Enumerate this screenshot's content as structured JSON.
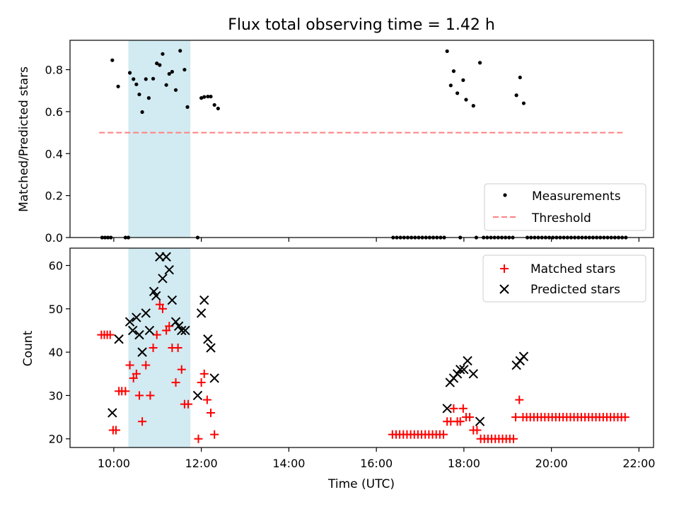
{
  "chart_data": {
    "title": "Flux total observing time = 1.42 h",
    "type": "scatter",
    "shaded_region_time": [
      "10:20",
      "11:45"
    ],
    "shaded_region_color": "#add8e6",
    "x_range_time": [
      "09:00",
      "22:20"
    ],
    "xlabel": "Time (UTC)",
    "xticks": [
      "10:00",
      "12:00",
      "14:00",
      "16:00",
      "18:00",
      "20:00",
      "22:00"
    ],
    "panels": [
      {
        "id": "ratio",
        "ylabel": "Matched/Predicted stars",
        "ylim": [
          0,
          0.94
        ],
        "yticks": [
          "0.0",
          "0.2",
          "0.4",
          "0.6",
          "0.8"
        ],
        "legend_position": "lower-right",
        "threshold": {
          "name": "Threshold",
          "value": 0.5,
          "x_range_time": [
            "09:40",
            "21:40"
          ],
          "color": "#ff8080",
          "style": "dashed"
        },
        "series": [
          {
            "name": "Measurements",
            "marker": "dot",
            "color": "#000000",
            "points": [
              [
                "09:44",
                0
              ],
              [
                "09:48",
                0
              ],
              [
                "09:52",
                0
              ],
              [
                "09:56",
                0
              ],
              [
                "10:16",
                0
              ],
              [
                "10:20",
                0
              ],
              [
                "11:55",
                0
              ],
              [
                "09:58",
                0.845
              ],
              [
                "10:06",
                0.72
              ],
              [
                "10:22",
                0.785
              ],
              [
                "10:27",
                0.755
              ],
              [
                "10:31",
                0.73
              ],
              [
                "10:35",
                0.682
              ],
              [
                "10:39",
                0.598
              ],
              [
                "10:44",
                0.755
              ],
              [
                "10:48",
                0.665
              ],
              [
                "10:54",
                0.757
              ],
              [
                "10:59",
                0.83
              ],
              [
                "11:03",
                0.822
              ],
              [
                "11:07",
                0.875
              ],
              [
                "11:12",
                0.727
              ],
              [
                "11:16",
                0.78
              ],
              [
                "11:20",
                0.79
              ],
              [
                "11:25",
                0.703
              ],
              [
                "11:31",
                0.89
              ],
              [
                "11:37",
                0.8
              ],
              [
                "11:41",
                0.622
              ],
              [
                "12:00",
                0.665
              ],
              [
                "12:04",
                0.67
              ],
              [
                "12:09",
                0.672
              ],
              [
                "12:13",
                0.672
              ],
              [
                "12:18",
                0.632
              ],
              [
                "12:23",
                0.615
              ],
              [
                "16:23",
                0
              ],
              [
                "16:28",
                0
              ],
              [
                "16:33",
                0
              ],
              [
                "16:38",
                0
              ],
              [
                "16:43",
                0
              ],
              [
                "16:48",
                0
              ],
              [
                "16:53",
                0
              ],
              [
                "16:58",
                0
              ],
              [
                "17:03",
                0
              ],
              [
                "17:08",
                0
              ],
              [
                "17:13",
                0
              ],
              [
                "17:18",
                0
              ],
              [
                "17:23",
                0
              ],
              [
                "17:28",
                0
              ],
              [
                "17:33",
                0
              ],
              [
                "17:37",
                0.888
              ],
              [
                "17:42",
                0.725
              ],
              [
                "17:46",
                0.793
              ],
              [
                "17:51",
                0.688
              ],
              [
                "17:55",
                0
              ],
              [
                "17:59",
                0.75
              ],
              [
                "18:03",
                0.657
              ],
              [
                "18:13",
                0.628
              ],
              [
                "18:22",
                0.833
              ],
              [
                "18:17",
                0
              ],
              [
                "18:27",
                0
              ],
              [
                "18:32",
                0
              ],
              [
                "18:37",
                0
              ],
              [
                "18:42",
                0
              ],
              [
                "18:47",
                0
              ],
              [
                "18:52",
                0
              ],
              [
                "18:57",
                0
              ],
              [
                "19:02",
                0
              ],
              [
                "19:07",
                0
              ],
              [
                "19:12",
                0.678
              ],
              [
                "19:17",
                0.763
              ],
              [
                "19:22",
                0.64
              ],
              [
                "19:27",
                0
              ],
              [
                "19:32",
                0
              ],
              [
                "19:37",
                0
              ],
              [
                "19:42",
                0
              ],
              [
                "19:47",
                0
              ],
              [
                "19:52",
                0
              ],
              [
                "19:57",
                0
              ],
              [
                "20:02",
                0
              ],
              [
                "20:07",
                0
              ],
              [
                "20:12",
                0
              ],
              [
                "20:17",
                0
              ],
              [
                "20:22",
                0
              ],
              [
                "20:27",
                0
              ],
              [
                "20:32",
                0
              ],
              [
                "20:37",
                0
              ],
              [
                "20:42",
                0
              ],
              [
                "20:47",
                0
              ],
              [
                "20:52",
                0
              ],
              [
                "20:57",
                0
              ],
              [
                "21:02",
                0
              ],
              [
                "21:07",
                0
              ],
              [
                "21:12",
                0
              ],
              [
                "21:17",
                0
              ],
              [
                "21:22",
                0
              ],
              [
                "21:27",
                0
              ],
              [
                "21:32",
                0
              ],
              [
                "21:37",
                0
              ],
              [
                "21:42",
                0
              ]
            ]
          }
        ]
      },
      {
        "id": "count",
        "ylabel": "Count",
        "ylim": [
          18,
          64
        ],
        "yticks": [
          "20",
          "30",
          "40",
          "50",
          "60"
        ],
        "legend_position": "upper-right",
        "series": [
          {
            "name": "Matched stars",
            "marker": "plus",
            "color": "#ff0000",
            "points": [
              [
                "09:43",
                44
              ],
              [
                "09:47",
                44
              ],
              [
                "09:51",
                44
              ],
              [
                "09:55",
                44
              ],
              [
                "09:59",
                22
              ],
              [
                "10:03",
                22
              ],
              [
                "10:07",
                31
              ],
              [
                "10:11",
                31
              ],
              [
                "10:16",
                31
              ],
              [
                "10:22",
                37
              ],
              [
                "10:27",
                34
              ],
              [
                "10:31",
                35
              ],
              [
                "10:35",
                30
              ],
              [
                "10:39",
                24
              ],
              [
                "10:44",
                37
              ],
              [
                "10:50",
                30
              ],
              [
                "10:54",
                41
              ],
              [
                "10:59",
                44
              ],
              [
                "11:03",
                51
              ],
              [
                "11:07",
                50
              ],
              [
                "11:12",
                45
              ],
              [
                "11:16",
                46
              ],
              [
                "11:20",
                41
              ],
              [
                "11:25",
                33
              ],
              [
                "11:28",
                41
              ],
              [
                "11:33",
                36
              ],
              [
                "11:37",
                28
              ],
              [
                "11:42",
                28
              ],
              [
                "11:56",
                20
              ],
              [
                "12:00",
                33
              ],
              [
                "12:04",
                35
              ],
              [
                "12:08",
                29
              ],
              [
                "12:13",
                26
              ],
              [
                "12:18",
                21
              ],
              [
                "16:22",
                21
              ],
              [
                "16:27",
                21
              ],
              [
                "16:32",
                21
              ],
              [
                "16:37",
                21
              ],
              [
                "16:42",
                21
              ],
              [
                "16:47",
                21
              ],
              [
                "16:52",
                21
              ],
              [
                "16:57",
                21
              ],
              [
                "17:02",
                21
              ],
              [
                "17:07",
                21
              ],
              [
                "17:12",
                21
              ],
              [
                "17:17",
                21
              ],
              [
                "17:22",
                21
              ],
              [
                "17:27",
                21
              ],
              [
                "17:32",
                21
              ],
              [
                "17:37",
                24
              ],
              [
                "17:42",
                24
              ],
              [
                "17:46",
                27
              ],
              [
                "17:51",
                24
              ],
              [
                "17:55",
                24
              ],
              [
                "17:59",
                27
              ],
              [
                "18:03",
                25
              ],
              [
                "18:08",
                25
              ],
              [
                "18:13",
                22
              ],
              [
                "18:18",
                22
              ],
              [
                "18:23",
                20
              ],
              [
                "18:28",
                20
              ],
              [
                "18:33",
                20
              ],
              [
                "18:38",
                20
              ],
              [
                "18:43",
                20
              ],
              [
                "18:48",
                20
              ],
              [
                "18:53",
                20
              ],
              [
                "18:58",
                20
              ],
              [
                "19:03",
                20
              ],
              [
                "19:08",
                20
              ],
              [
                "19:11",
                25
              ],
              [
                "19:16",
                29
              ],
              [
                "19:21",
                25
              ],
              [
                "19:26",
                25
              ],
              [
                "19:31",
                25
              ],
              [
                "19:36",
                25
              ],
              [
                "19:41",
                25
              ],
              [
                "19:46",
                25
              ],
              [
                "19:51",
                25
              ],
              [
                "19:56",
                25
              ],
              [
                "20:01",
                25
              ],
              [
                "20:06",
                25
              ],
              [
                "20:11",
                25
              ],
              [
                "20:16",
                25
              ],
              [
                "20:21",
                25
              ],
              [
                "20:26",
                25
              ],
              [
                "20:31",
                25
              ],
              [
                "20:36",
                25
              ],
              [
                "20:41",
                25
              ],
              [
                "20:46",
                25
              ],
              [
                "20:51",
                25
              ],
              [
                "20:56",
                25
              ],
              [
                "21:01",
                25
              ],
              [
                "21:06",
                25
              ],
              [
                "21:11",
                25
              ],
              [
                "21:16",
                25
              ],
              [
                "21:21",
                25
              ],
              [
                "21:26",
                25
              ],
              [
                "21:31",
                25
              ],
              [
                "21:36",
                25
              ],
              [
                "21:41",
                25
              ]
            ]
          },
          {
            "name": "Predicted stars",
            "marker": "cross",
            "color": "#000000",
            "points": [
              [
                "09:58",
                26
              ],
              [
                "10:07",
                43
              ],
              [
                "10:22",
                47
              ],
              [
                "10:26",
                45
              ],
              [
                "10:31",
                48
              ],
              [
                "10:35",
                44
              ],
              [
                "10:39",
                40
              ],
              [
                "10:44",
                49
              ],
              [
                "10:49",
                45
              ],
              [
                "10:55",
                54
              ],
              [
                "10:58",
                53
              ],
              [
                "11:03",
                62
              ],
              [
                "11:07",
                57
              ],
              [
                "11:12",
                62
              ],
              [
                "11:16",
                59
              ],
              [
                "11:20",
                52
              ],
              [
                "11:25",
                47
              ],
              [
                "11:29",
                46
              ],
              [
                "11:33",
                45
              ],
              [
                "11:38",
                45
              ],
              [
                "11:55",
                30
              ],
              [
                "12:00",
                49
              ],
              [
                "12:04",
                52
              ],
              [
                "12:09",
                43
              ],
              [
                "12:13",
                41
              ],
              [
                "12:18",
                34
              ],
              [
                "17:37",
                27
              ],
              [
                "17:41",
                33
              ],
              [
                "17:46",
                34
              ],
              [
                "17:51",
                35
              ],
              [
                "17:55",
                36
              ],
              [
                "18:00",
                36
              ],
              [
                "18:05",
                38
              ],
              [
                "18:13",
                35
              ],
              [
                "18:22",
                24
              ],
              [
                "19:12",
                37
              ],
              [
                "19:17",
                38
              ],
              [
                "19:22",
                39
              ]
            ]
          }
        ]
      }
    ]
  }
}
